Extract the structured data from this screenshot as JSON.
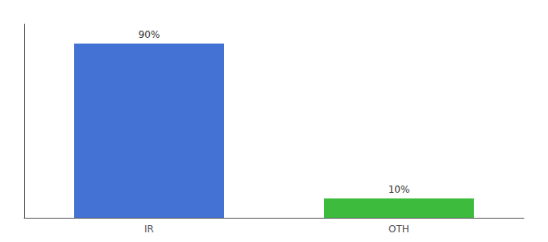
{
  "chart_data": {
    "type": "bar",
    "categories": [
      "IR",
      "OTH"
    ],
    "values": [
      90,
      10
    ],
    "colors": [
      "#4472d4",
      "#3dbb3d"
    ],
    "value_labels": [
      "90%",
      "10%"
    ],
    "data_labels": true,
    "ylim": [
      0,
      100
    ],
    "grid": false,
    "tick_labels": "x"
  }
}
